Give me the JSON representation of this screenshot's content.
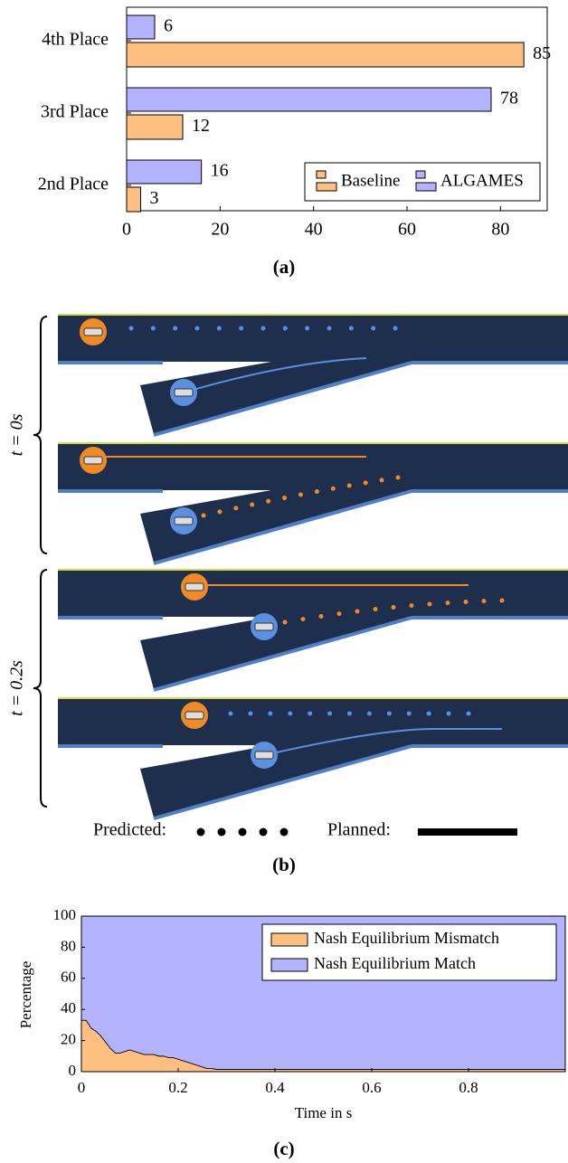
{
  "chart_data": [
    {
      "type": "bar",
      "orientation": "horizontal",
      "caption": "(a)",
      "categories": [
        "2nd Place",
        "3rd Place",
        "4th Place"
      ],
      "series": [
        {
          "name": "Baseline",
          "color": "#ffbf80",
          "values": [
            3,
            12,
            85
          ]
        },
        {
          "name": "ALGAMES",
          "color": "#b3b3ff",
          "values": [
            16,
            78,
            6
          ]
        }
      ],
      "xlim": [
        0,
        90
      ],
      "xticks": [
        0,
        20,
        40,
        60,
        80
      ],
      "legend": "lower right",
      "grid": false
    },
    {
      "type": "area",
      "stacked": true,
      "caption": "(c)",
      "x_label": "Time in s",
      "y_label": "Percentage",
      "x": [
        0,
        0.01,
        0.02,
        0.03,
        0.04,
        0.05,
        0.06,
        0.07,
        0.08,
        0.09,
        0.1,
        0.11,
        0.12,
        0.13,
        0.14,
        0.15,
        0.16,
        0.17,
        0.18,
        0.19,
        0.2,
        0.21,
        0.22,
        0.23,
        0.24,
        0.25,
        0.26,
        0.27,
        0.28,
        0.3,
        0.4,
        0.5,
        0.6,
        0.7,
        0.8,
        0.9,
        1
      ],
      "series": [
        {
          "name": "Nash Equilibrium Mismatch",
          "color": "#ffbf80",
          "values": [
            33,
            33,
            28,
            26,
            23,
            19,
            15,
            12,
            12,
            13,
            14,
            13,
            12,
            11,
            11,
            11,
            10,
            10,
            9,
            9,
            8,
            7,
            6,
            5,
            4,
            3,
            2,
            2,
            1.5,
            1.5,
            1.5,
            1.5,
            1.5,
            1.5,
            1.5,
            1.5,
            1.5
          ]
        },
        {
          "name": "Nash Equilibrium Match",
          "color": "#b3b3ff",
          "values": [
            67,
            67,
            72,
            74,
            77,
            81,
            85,
            88,
            88,
            87,
            86,
            87,
            88,
            89,
            89,
            89,
            90,
            90,
            91,
            91,
            92,
            93,
            94,
            95,
            96,
            97,
            98,
            98,
            98.5,
            98.5,
            98.5,
            98.5,
            98.5,
            98.5,
            98.5,
            98.5,
            98.5
          ]
        }
      ],
      "xlim": [
        0,
        1
      ],
      "xticks": [
        0,
        0.2,
        0.4,
        0.6,
        0.8
      ],
      "ylim": [
        0,
        100
      ],
      "yticks": [
        0,
        20,
        40,
        60,
        80,
        100
      ],
      "legend": "upper right"
    }
  ],
  "diagram": {
    "time_labels": [
      "t = 0s",
      "t = 0.2s"
    ],
    "legend": {
      "predicted": "Predicted:",
      "planned": "Planned:"
    },
    "caption": "(b)"
  }
}
